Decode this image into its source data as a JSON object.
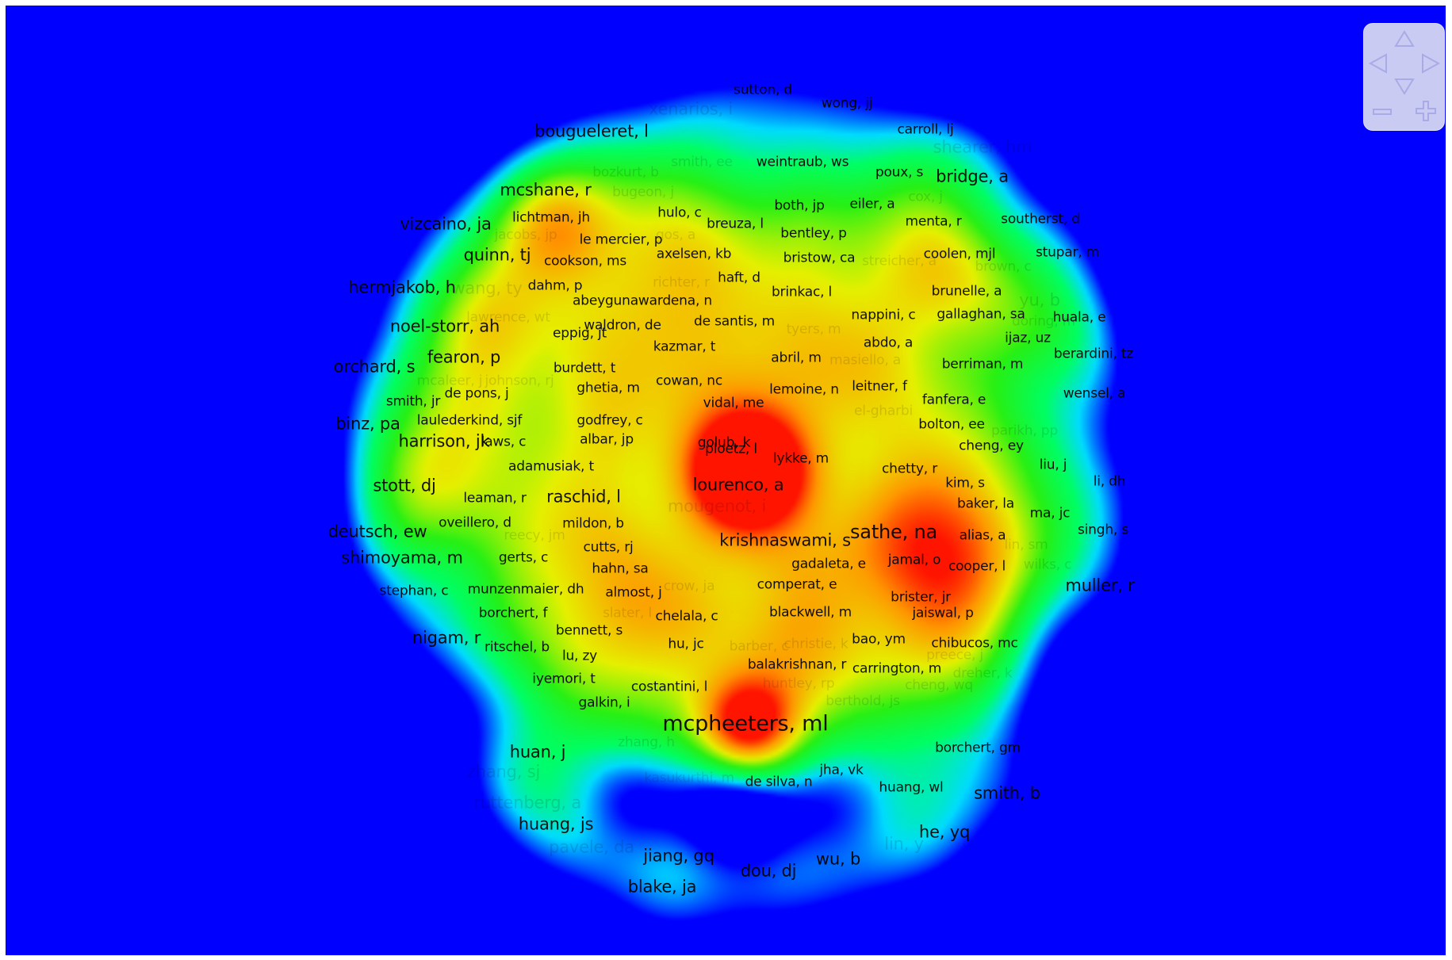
{
  "colors": {
    "background": "#0000ff",
    "nav_panel": "#c9cbf2",
    "nav_icon": "#a9abe6"
  },
  "navigation": {
    "up": "pan-up-icon",
    "left": "pan-left-icon",
    "right": "pan-right-icon",
    "down": "pan-down-icon",
    "zoom_out": "zoom-out-icon",
    "zoom_in": "zoom-in-icon"
  },
  "labels": [
    {
      "text": "sutton, d",
      "size": 1
    },
    {
      "text": "wong, jj",
      "size": 1
    },
    {
      "text": "xenarios, i",
      "size": 2,
      "dim": true
    },
    {
      "text": "bougueleret, l",
      "size": 2
    },
    {
      "text": "carroll, lj",
      "size": 1
    },
    {
      "text": "shearer, hm",
      "size": 2,
      "dim": true
    },
    {
      "text": "smith, ee",
      "size": 1,
      "dim": true
    },
    {
      "text": "weintraub, ws",
      "size": 1
    },
    {
      "text": "poux, s",
      "size": 1
    },
    {
      "text": "bridge, a",
      "size": 2
    },
    {
      "text": "bozkurt, b",
      "size": 1,
      "dim": true
    },
    {
      "text": "mcshane, r",
      "size": 2
    },
    {
      "text": "bugeon, j",
      "size": 1,
      "dim": true
    },
    {
      "text": "cox, j",
      "size": 1,
      "dim": true
    },
    {
      "text": "lichtman, jh",
      "size": 1
    },
    {
      "text": "hulo, c",
      "size": 1
    },
    {
      "text": "both, jp",
      "size": 1
    },
    {
      "text": "eiler, a",
      "size": 1
    },
    {
      "text": "vizcaino, ja",
      "size": 2
    },
    {
      "text": "breuza, l",
      "size": 1
    },
    {
      "text": "menta, r",
      "size": 1
    },
    {
      "text": "southerst, d",
      "size": 1
    },
    {
      "text": "jacobs, jp",
      "size": 1,
      "dim": true
    },
    {
      "text": "gos, a",
      "size": 1,
      "dim": true
    },
    {
      "text": "le mercier, p",
      "size": 1
    },
    {
      "text": "bentley, p",
      "size": 1
    },
    {
      "text": "quinn, tj",
      "size": 2
    },
    {
      "text": "cookson, ms",
      "size": 1
    },
    {
      "text": "axelsen, kb",
      "size": 1
    },
    {
      "text": "bristow, ca",
      "size": 1
    },
    {
      "text": "coolen, mjl",
      "size": 1
    },
    {
      "text": "stupar, m",
      "size": 1
    },
    {
      "text": "streicher, a",
      "size": 1,
      "dim": true
    },
    {
      "text": "brown, c",
      "size": 1,
      "dim": true
    },
    {
      "text": "haft, d",
      "size": 1
    },
    {
      "text": "hermjakob, h",
      "size": 2
    },
    {
      "text": "wang, ty",
      "size": 2,
      "dim": true
    },
    {
      "text": "dahm, p",
      "size": 1
    },
    {
      "text": "richter, r",
      "size": 1,
      "dim": true
    },
    {
      "text": "brinkac, l",
      "size": 1
    },
    {
      "text": "brunelle, a",
      "size": 1
    },
    {
      "text": "yu, b",
      "size": 2,
      "dim": true
    },
    {
      "text": "abeygunawardena, n",
      "size": 1
    },
    {
      "text": "lawrence, wt",
      "size": 1,
      "dim": true
    },
    {
      "text": "nappini, c",
      "size": 1
    },
    {
      "text": "gallaghan, sa",
      "size": 1
    },
    {
      "text": "huala, e",
      "size": 1
    },
    {
      "text": "noel-storr, ah",
      "size": 2
    },
    {
      "text": "waldron, de",
      "size": 1
    },
    {
      "text": "de santis, m",
      "size": 1
    },
    {
      "text": "tyers, m",
      "size": 1,
      "dim": true
    },
    {
      "text": "doring, m",
      "size": 1,
      "dim": true
    },
    {
      "text": "eppig, jt",
      "size": 1
    },
    {
      "text": "ijaz, uz",
      "size": 1
    },
    {
      "text": "abdo, a",
      "size": 1
    },
    {
      "text": "kazmar, t",
      "size": 1
    },
    {
      "text": "fearon, p",
      "size": 2
    },
    {
      "text": "abril, m",
      "size": 1
    },
    {
      "text": "masiello, a",
      "size": 1,
      "dim": true
    },
    {
      "text": "berardini, tz",
      "size": 1
    },
    {
      "text": "orchard, s",
      "size": 2
    },
    {
      "text": "burdett, t",
      "size": 1
    },
    {
      "text": "berriman, m",
      "size": 1
    },
    {
      "text": "mcaleer, j",
      "size": 1,
      "dim": true
    },
    {
      "text": "johnson, rj",
      "size": 1,
      "dim": true
    },
    {
      "text": "cowan, nc",
      "size": 1
    },
    {
      "text": "ghetia, m",
      "size": 1
    },
    {
      "text": "lemoine, n",
      "size": 1
    },
    {
      "text": "leitner, f",
      "size": 1
    },
    {
      "text": "de pons, j",
      "size": 1
    },
    {
      "text": "wensel, a",
      "size": 1
    },
    {
      "text": "smith, jr",
      "size": 1
    },
    {
      "text": "vidal, me",
      "size": 1
    },
    {
      "text": "fanfera, e",
      "size": 1
    },
    {
      "text": "laulederkind, sjf",
      "size": 1
    },
    {
      "text": "godfrey, c",
      "size": 1
    },
    {
      "text": "el-gharbi",
      "size": 1,
      "dim": true
    },
    {
      "text": "binz, pa",
      "size": 2
    },
    {
      "text": "bolton, ee",
      "size": 1
    },
    {
      "text": "parikh, pp",
      "size": 1,
      "dim": true
    },
    {
      "text": "ploetz, l",
      "size": 1
    },
    {
      "text": "harrison, jk",
      "size": 2
    },
    {
      "text": "laws, c",
      "size": 1
    },
    {
      "text": "albar, jp",
      "size": 1
    },
    {
      "text": "golub, k",
      "size": 1
    },
    {
      "text": "cheng, ey",
      "size": 1
    },
    {
      "text": "lykke, m",
      "size": 1
    },
    {
      "text": "liu, j",
      "size": 1
    },
    {
      "text": "adamusiak, t",
      "size": 1
    },
    {
      "text": "chetty, r",
      "size": 1
    },
    {
      "text": "li, dh",
      "size": 1
    },
    {
      "text": "stott, dj",
      "size": 2
    },
    {
      "text": "leaman, r",
      "size": 1
    },
    {
      "text": "raschid, l",
      "size": 2
    },
    {
      "text": "lourenco, a",
      "size": 2
    },
    {
      "text": "kim, s",
      "size": 1
    },
    {
      "text": "baker, la",
      "size": 1
    },
    {
      "text": "mougenot, i",
      "size": 2,
      "dim": true
    },
    {
      "text": "ma, jc",
      "size": 1
    },
    {
      "text": "oveillero, d",
      "size": 1
    },
    {
      "text": "mildon, b",
      "size": 1
    },
    {
      "text": "deutsch, ew",
      "size": 2
    },
    {
      "text": "reecy, jm",
      "size": 1,
      "dim": true
    },
    {
      "text": "krishnaswami, s",
      "size": 2
    },
    {
      "text": "sathe, na",
      "size": 3
    },
    {
      "text": "alias, a",
      "size": 1
    },
    {
      "text": "singh, s",
      "size": 1
    },
    {
      "text": "cutts, rj",
      "size": 1
    },
    {
      "text": "lin, sm",
      "size": 1,
      "dim": true
    },
    {
      "text": "shimoyama, m",
      "size": 2
    },
    {
      "text": "gerts, c",
      "size": 1
    },
    {
      "text": "hahn, sa",
      "size": 1
    },
    {
      "text": "gadaleta, e",
      "size": 1
    },
    {
      "text": "jamal, o",
      "size": 1
    },
    {
      "text": "cooper, l",
      "size": 1
    },
    {
      "text": "wilks, c",
      "size": 1,
      "dim": true
    },
    {
      "text": "stephan, c",
      "size": 1
    },
    {
      "text": "munzenmaier, dh",
      "size": 1
    },
    {
      "text": "almost, j",
      "size": 1
    },
    {
      "text": "crow, ja",
      "size": 1,
      "dim": true
    },
    {
      "text": "comperat, e",
      "size": 1
    },
    {
      "text": "brister, jr",
      "size": 1
    },
    {
      "text": "muller, r",
      "size": 2
    },
    {
      "text": "borchert, f",
      "size": 1
    },
    {
      "text": "slater, l",
      "size": 1,
      "dim": true
    },
    {
      "text": "chelala, c",
      "size": 1
    },
    {
      "text": "blackwell, m",
      "size": 1
    },
    {
      "text": "jaiswal, p",
      "size": 1
    },
    {
      "text": "bennett, s",
      "size": 1
    },
    {
      "text": "nigam, r",
      "size": 2
    },
    {
      "text": "ritschel, b",
      "size": 1
    },
    {
      "text": "hu, jc",
      "size": 1
    },
    {
      "text": "barber, c",
      "size": 1,
      "dim": true
    },
    {
      "text": "christie, k",
      "size": 1,
      "dim": true
    },
    {
      "text": "bao, ym",
      "size": 1
    },
    {
      "text": "chibucos, mc",
      "size": 1
    },
    {
      "text": "lu, zy",
      "size": 1
    },
    {
      "text": "balakrishnan, r",
      "size": 1
    },
    {
      "text": "carrington, m",
      "size": 1
    },
    {
      "text": "preece, j",
      "size": 1,
      "dim": true
    },
    {
      "text": "iyemori, t",
      "size": 1
    },
    {
      "text": "huntley, rp",
      "size": 1,
      "dim": true
    },
    {
      "text": "dreher, k",
      "size": 1,
      "dim": true
    },
    {
      "text": "costantini, l",
      "size": 1
    },
    {
      "text": "cheng, wq",
      "size": 1,
      "dim": true
    },
    {
      "text": "galkin, i",
      "size": 1
    },
    {
      "text": "berthold, js",
      "size": 1,
      "dim": true
    },
    {
      "text": "mcpheeters, ml",
      "size": 4
    },
    {
      "text": "zhang, h",
      "size": 1,
      "dim": true
    },
    {
      "text": "huan, j",
      "size": 2
    },
    {
      "text": "borchert, gm",
      "size": 1
    },
    {
      "text": "zhang, sj",
      "size": 2,
      "dim": true
    },
    {
      "text": "kasukurthi, m",
      "size": 1,
      "dim": true
    },
    {
      "text": "de silva, n",
      "size": 1
    },
    {
      "text": "jha, vk",
      "size": 1
    },
    {
      "text": "huang, wl",
      "size": 1
    },
    {
      "text": "smith, b",
      "size": 2
    },
    {
      "text": "ruttenberg, a",
      "size": 2,
      "dim": true
    },
    {
      "text": "huang, js",
      "size": 2
    },
    {
      "text": "he, yq",
      "size": 2
    },
    {
      "text": "pavele, da",
      "size": 2,
      "dim": true
    },
    {
      "text": "lin, y",
      "size": 2,
      "dim": true
    },
    {
      "text": "jiang, gq",
      "size": 2
    },
    {
      "text": "wu, b",
      "size": 2
    },
    {
      "text": "dou, dj",
      "size": 2
    },
    {
      "text": "blake, ja",
      "size": 2
    }
  ]
}
